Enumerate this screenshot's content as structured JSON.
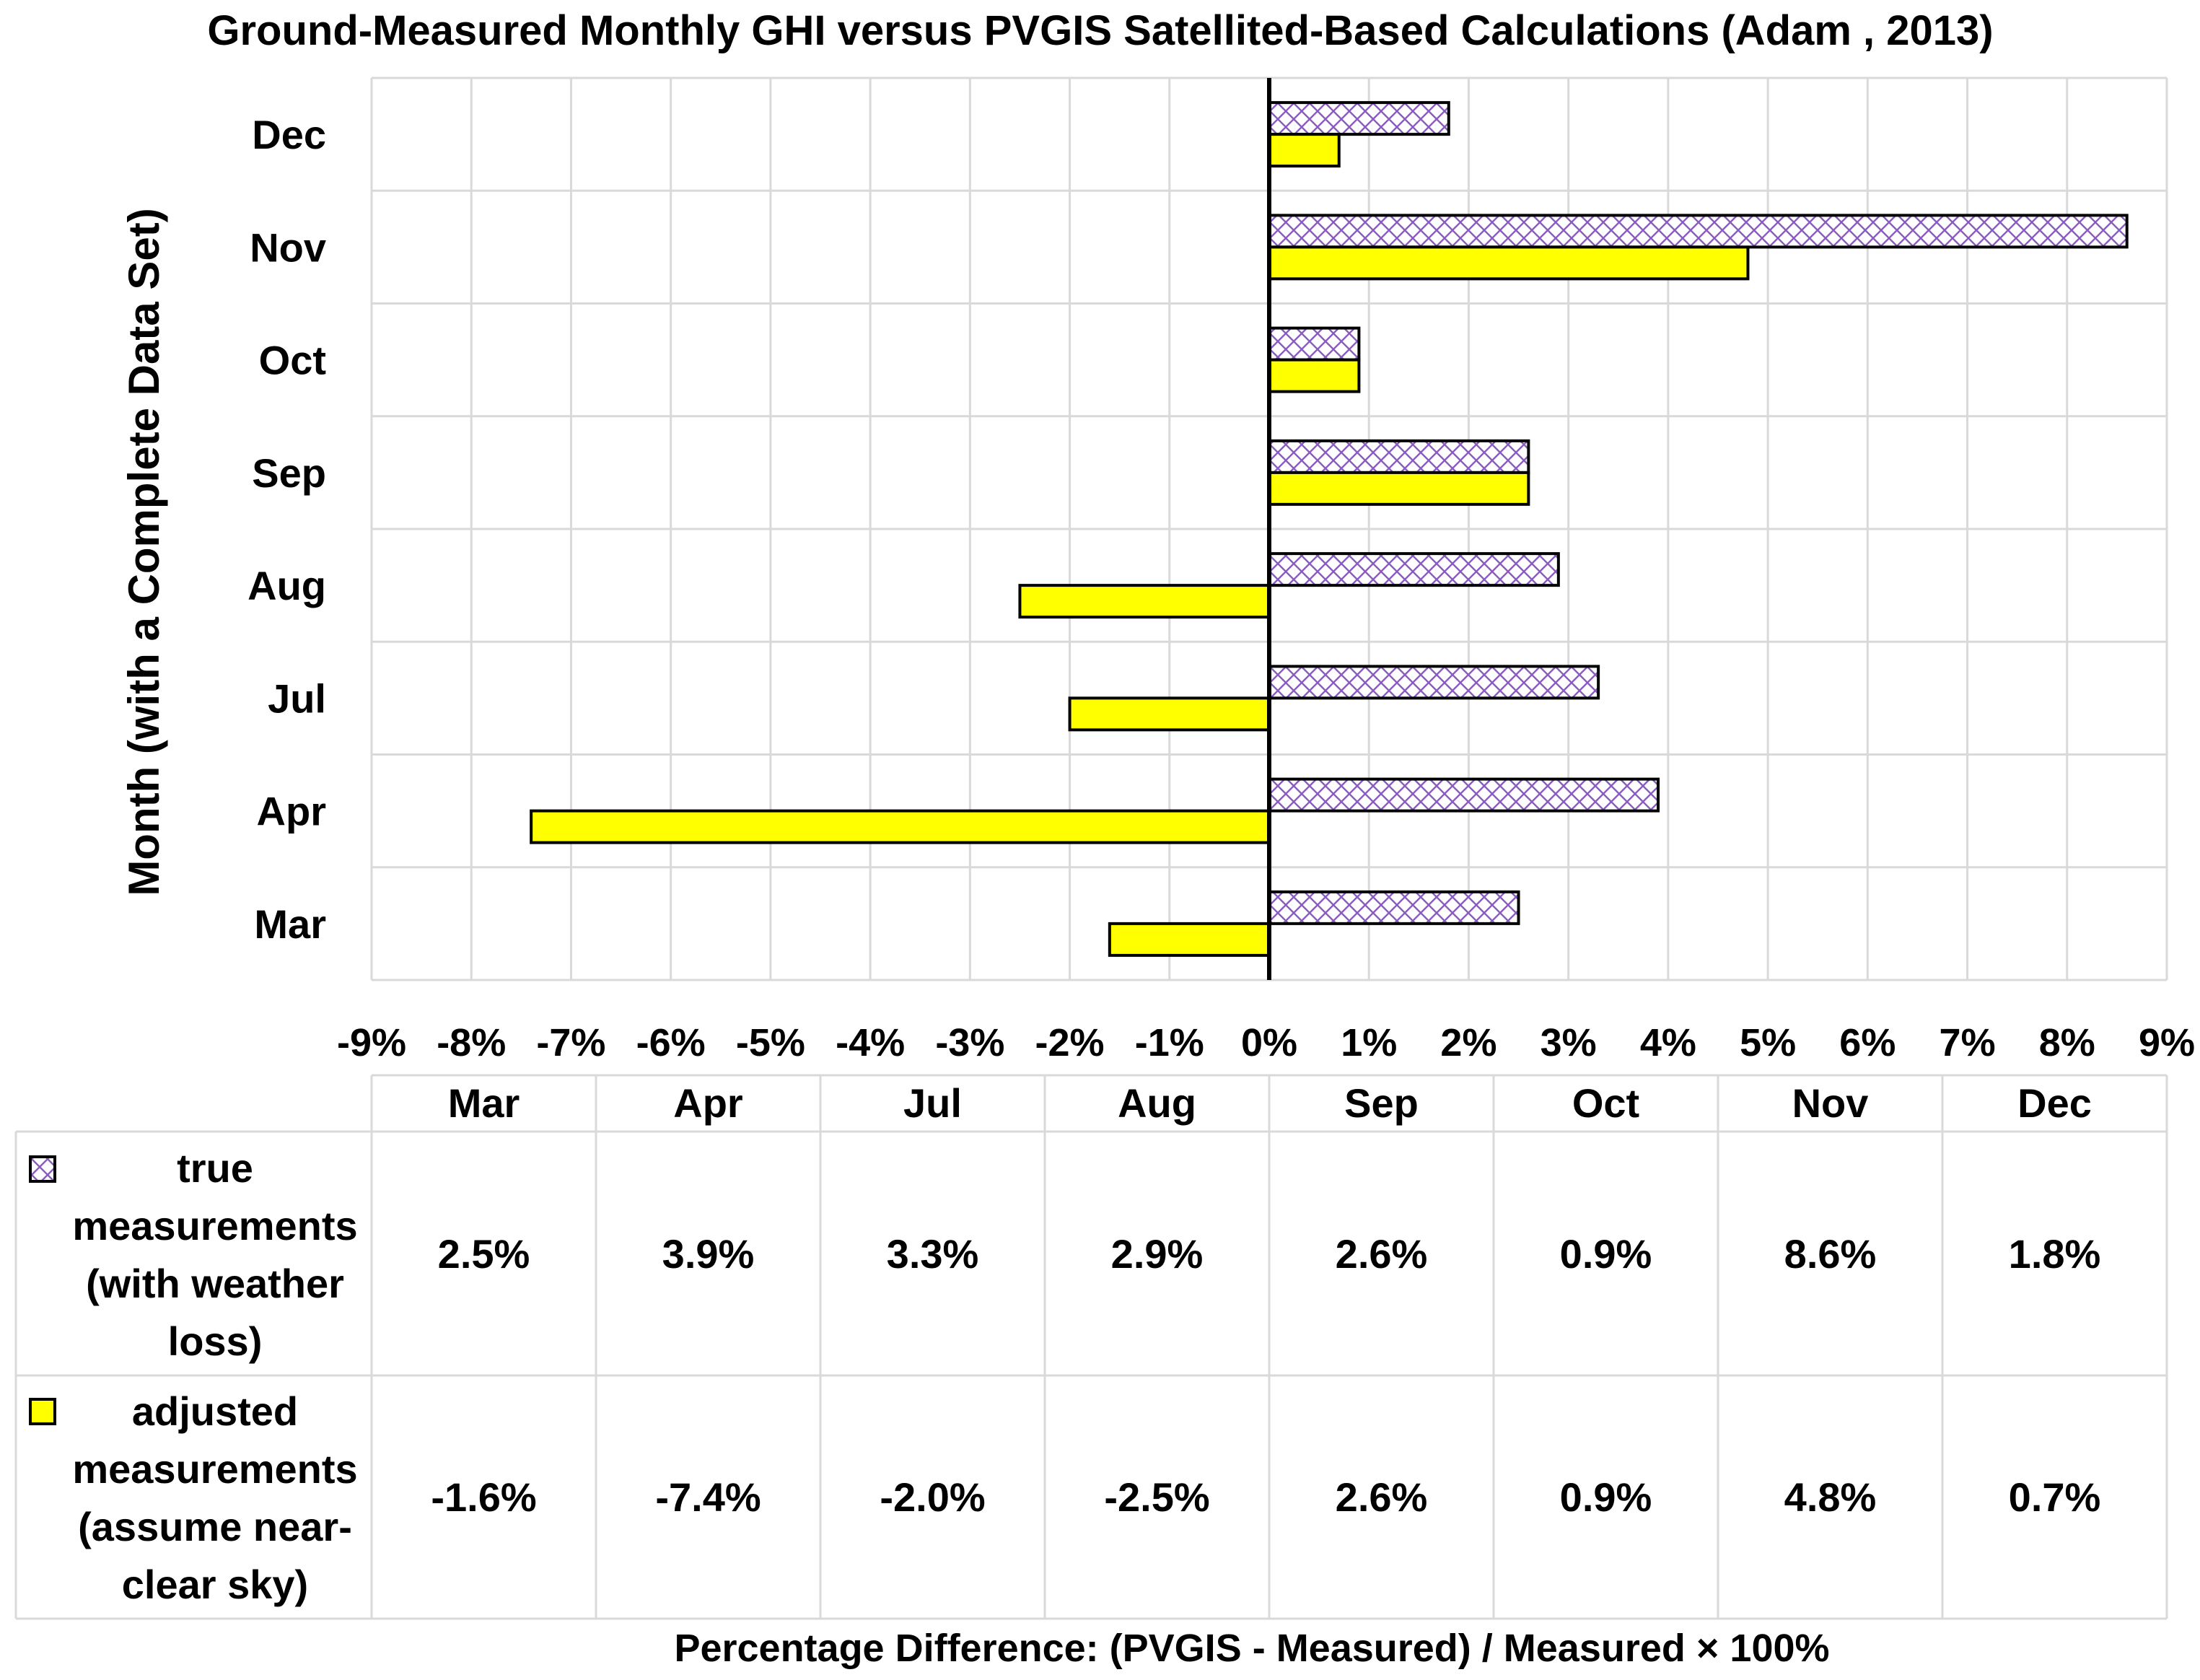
{
  "chart_data": {
    "type": "bar",
    "orientation": "horizontal",
    "title": "Ground-Measured Monthly GHI versus PVGIS Satellited-Based Calculations (Adam , 2013)",
    "ylabel": "Month (with a Complete Data Set)",
    "xlabel": "Percentage Difference: (PVGIS - Measured) / Measured × 100%",
    "categories": [
      "Mar",
      "Apr",
      "Jul",
      "Aug",
      "Sep",
      "Oct",
      "Nov",
      "Dec"
    ],
    "xlim": [
      -9,
      9
    ],
    "xticks": [
      -9,
      -8,
      -7,
      -6,
      -5,
      -4,
      -3,
      -2,
      -1,
      0,
      1,
      2,
      3,
      4,
      5,
      6,
      7,
      8,
      9
    ],
    "tick_labels": [
      "-9%",
      "-8%",
      "-7%",
      "-6%",
      "-5%",
      "-4%",
      "-3%",
      "-2%",
      "-1%",
      "0%",
      "1%",
      "2%",
      "3%",
      "4%",
      "5%",
      "6%",
      "7%",
      "8%",
      "9%"
    ],
    "grid": true,
    "series": [
      {
        "name": "true measurements (with weather loss)",
        "legend_lines": [
          "true",
          "measurements",
          "(with weather",
          "loss)"
        ],
        "values": [
          2.5,
          3.9,
          3.3,
          2.9,
          2.6,
          0.9,
          8.6,
          1.8
        ],
        "labels": [
          "2.5%",
          "3.9%",
          "3.3%",
          "2.9%",
          "2.6%",
          "0.9%",
          "8.6%",
          "1.8%"
        ],
        "fill": "#ffffff",
        "pattern_color": "#8a5cc0",
        "pattern": "crosshatch"
      },
      {
        "name": "adjusted measurements (assume near-clear sky)",
        "legend_lines": [
          "adjusted",
          "measurements",
          "(assume near-",
          "clear sky)"
        ],
        "values": [
          -1.6,
          -7.4,
          -2.0,
          -2.5,
          2.6,
          0.9,
          4.8,
          0.7
        ],
        "labels": [
          "-1.6%",
          "-7.4%",
          "-2.0%",
          "-2.5%",
          "2.6%",
          "0.9%",
          "4.8%",
          "0.7%"
        ],
        "fill": "#ffff00",
        "pattern": "solid"
      }
    ],
    "legend_position": "data-table"
  }
}
